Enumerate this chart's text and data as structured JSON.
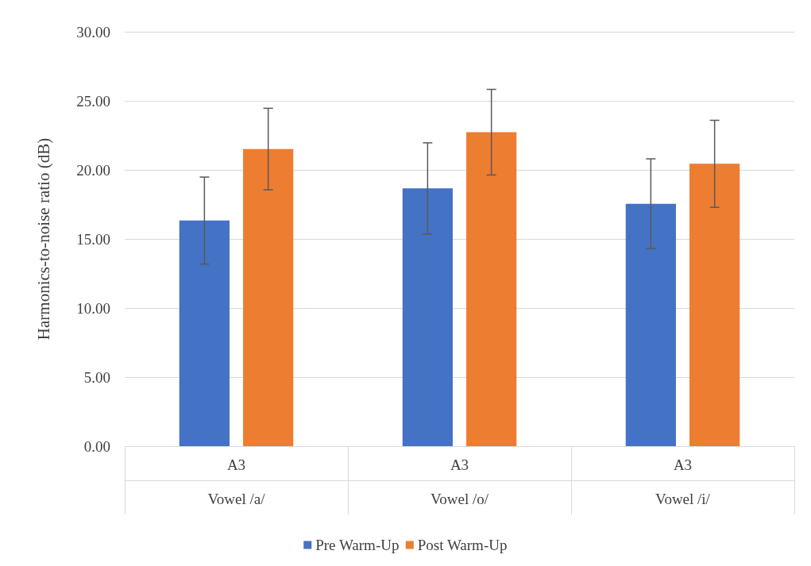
{
  "chart_data": {
    "type": "bar",
    "ylabel": "Harmonics-to-noise ratio (dB)",
    "categories": [
      "A3\nVowel /a/",
      "A3\nVowel /o/",
      "A3\nVowel /i/"
    ],
    "series": [
      {
        "name": "Pre Warm-Up",
        "color": "#4472c4",
        "values": [
          16.33,
          18.66,
          17.55
        ],
        "errors": [
          3.15,
          3.3,
          3.25
        ]
      },
      {
        "name": "Post Warm-Up",
        "color": "#ed7d31",
        "values": [
          21.51,
          22.73,
          20.44
        ],
        "errors": [
          2.95,
          3.1,
          3.15
        ]
      }
    ],
    "ylim": [
      0,
      30
    ],
    "yticks": [
      {
        "value": 0,
        "label": "0.00"
      },
      {
        "value": 5,
        "label": "5.00"
      },
      {
        "value": 10,
        "label": "10.00"
      },
      {
        "value": 15,
        "label": "15.00"
      },
      {
        "value": 20,
        "label": "20.00"
      },
      {
        "value": 25,
        "label": "25.00"
      },
      {
        "value": 30,
        "label": "30.00"
      }
    ],
    "grid": "y",
    "legend": "bottom"
  }
}
